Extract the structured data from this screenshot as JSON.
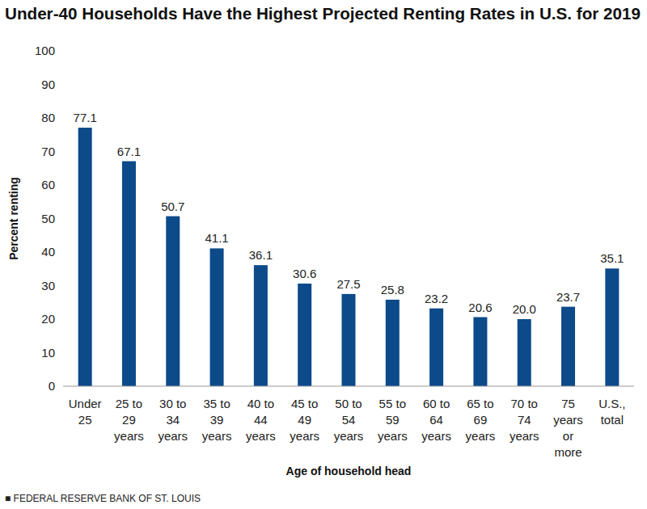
{
  "chart_data": {
    "type": "bar",
    "title": "Under-40 Households Have the Highest Projected Renting Rates in U.S. for 2019",
    "categories": [
      "Under\n25",
      "25 to\n29\nyears",
      "30 to\n34\nyears",
      "35 to\n39\nyears",
      "40 to\n44\nyears",
      "45 to\n49\nyears",
      "50 to\n54\nyears",
      "55 to\n59\nyears",
      "60 to\n64\nyears",
      "65 to\n69\nyears",
      "70 to\n74\nyears",
      "75\nyears\nor\nmore",
      "U.S.,\ntotal"
    ],
    "values": [
      77.1,
      67.1,
      50.7,
      41.1,
      36.1,
      30.6,
      27.5,
      25.8,
      23.2,
      20.6,
      20.0,
      23.7,
      35.1
    ],
    "value_labels": [
      "77.1",
      "67.1",
      "50.7",
      "41.1",
      "36.1",
      "30.6",
      "27.5",
      "25.8",
      "23.2",
      "20.6",
      "20.0",
      "23.7",
      "35.1"
    ],
    "color": "#0c4a8a",
    "ylim": [
      0,
      100
    ],
    "yticks": [
      0,
      10,
      20,
      30,
      40,
      50,
      60,
      70,
      80,
      90,
      100
    ],
    "grid": false,
    "data_labels": true,
    "x_label": "Age of household head",
    "y_label": "Percent renting",
    "source": "■ FEDERAL RESERVE BANK OF ST. LOUIS"
  }
}
